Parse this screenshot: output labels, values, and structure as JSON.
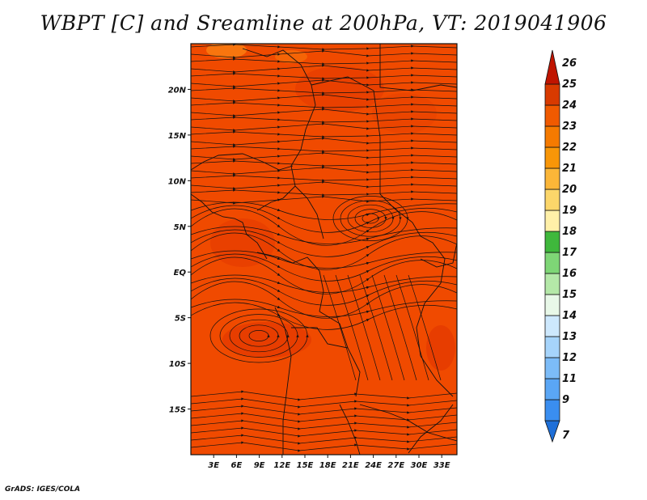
{
  "title": "WBPT [C] and Sreamline at 200hPa, VT: 2019041906",
  "footer": "GrADS: IGES/COLA",
  "map": {
    "lon_range": [
      0,
      35
    ],
    "lat_range": [
      -20,
      25
    ],
    "lon_ticks": [
      {
        "value": 3,
        "label": "3E"
      },
      {
        "value": 6,
        "label": "6E"
      },
      {
        "value": 9,
        "label": "9E"
      },
      {
        "value": 12,
        "label": "12E"
      },
      {
        "value": 15,
        "label": "15E"
      },
      {
        "value": 18,
        "label": "18E"
      },
      {
        "value": 21,
        "label": "21E"
      },
      {
        "value": 24,
        "label": "24E"
      },
      {
        "value": 27,
        "label": "27E"
      },
      {
        "value": 30,
        "label": "30E"
      },
      {
        "value": 33,
        "label": "33E"
      }
    ],
    "lat_ticks": [
      {
        "value": 20,
        "label": "20N"
      },
      {
        "value": 15,
        "label": "15N"
      },
      {
        "value": 10,
        "label": "10N"
      },
      {
        "value": 5,
        "label": "5N"
      },
      {
        "value": 0,
        "label": "EQ"
      },
      {
        "value": -5,
        "label": "5S"
      },
      {
        "value": -10,
        "label": "10S"
      },
      {
        "value": -15,
        "label": "15S"
      }
    ],
    "background_field_color": "#f04a00"
  },
  "colorbar": {
    "labels": [
      "7",
      "9",
      "11",
      "12",
      "13",
      "14",
      "15",
      "16",
      "17",
      "18",
      "19",
      "20",
      "21",
      "22",
      "23",
      "24",
      "25",
      "26"
    ],
    "colors": [
      "#1e6fd8",
      "#3a8ef0",
      "#5aa6f5",
      "#7cbcf8",
      "#a6d4fb",
      "#cde8fd",
      "#e8f8e8",
      "#b4e8a8",
      "#7ed676",
      "#3fb83c",
      "#fff0a8",
      "#fcd66a",
      "#fbb638",
      "#f89608",
      "#f57a00",
      "#f05a00",
      "#d83a00",
      "#c01400"
    ]
  }
}
